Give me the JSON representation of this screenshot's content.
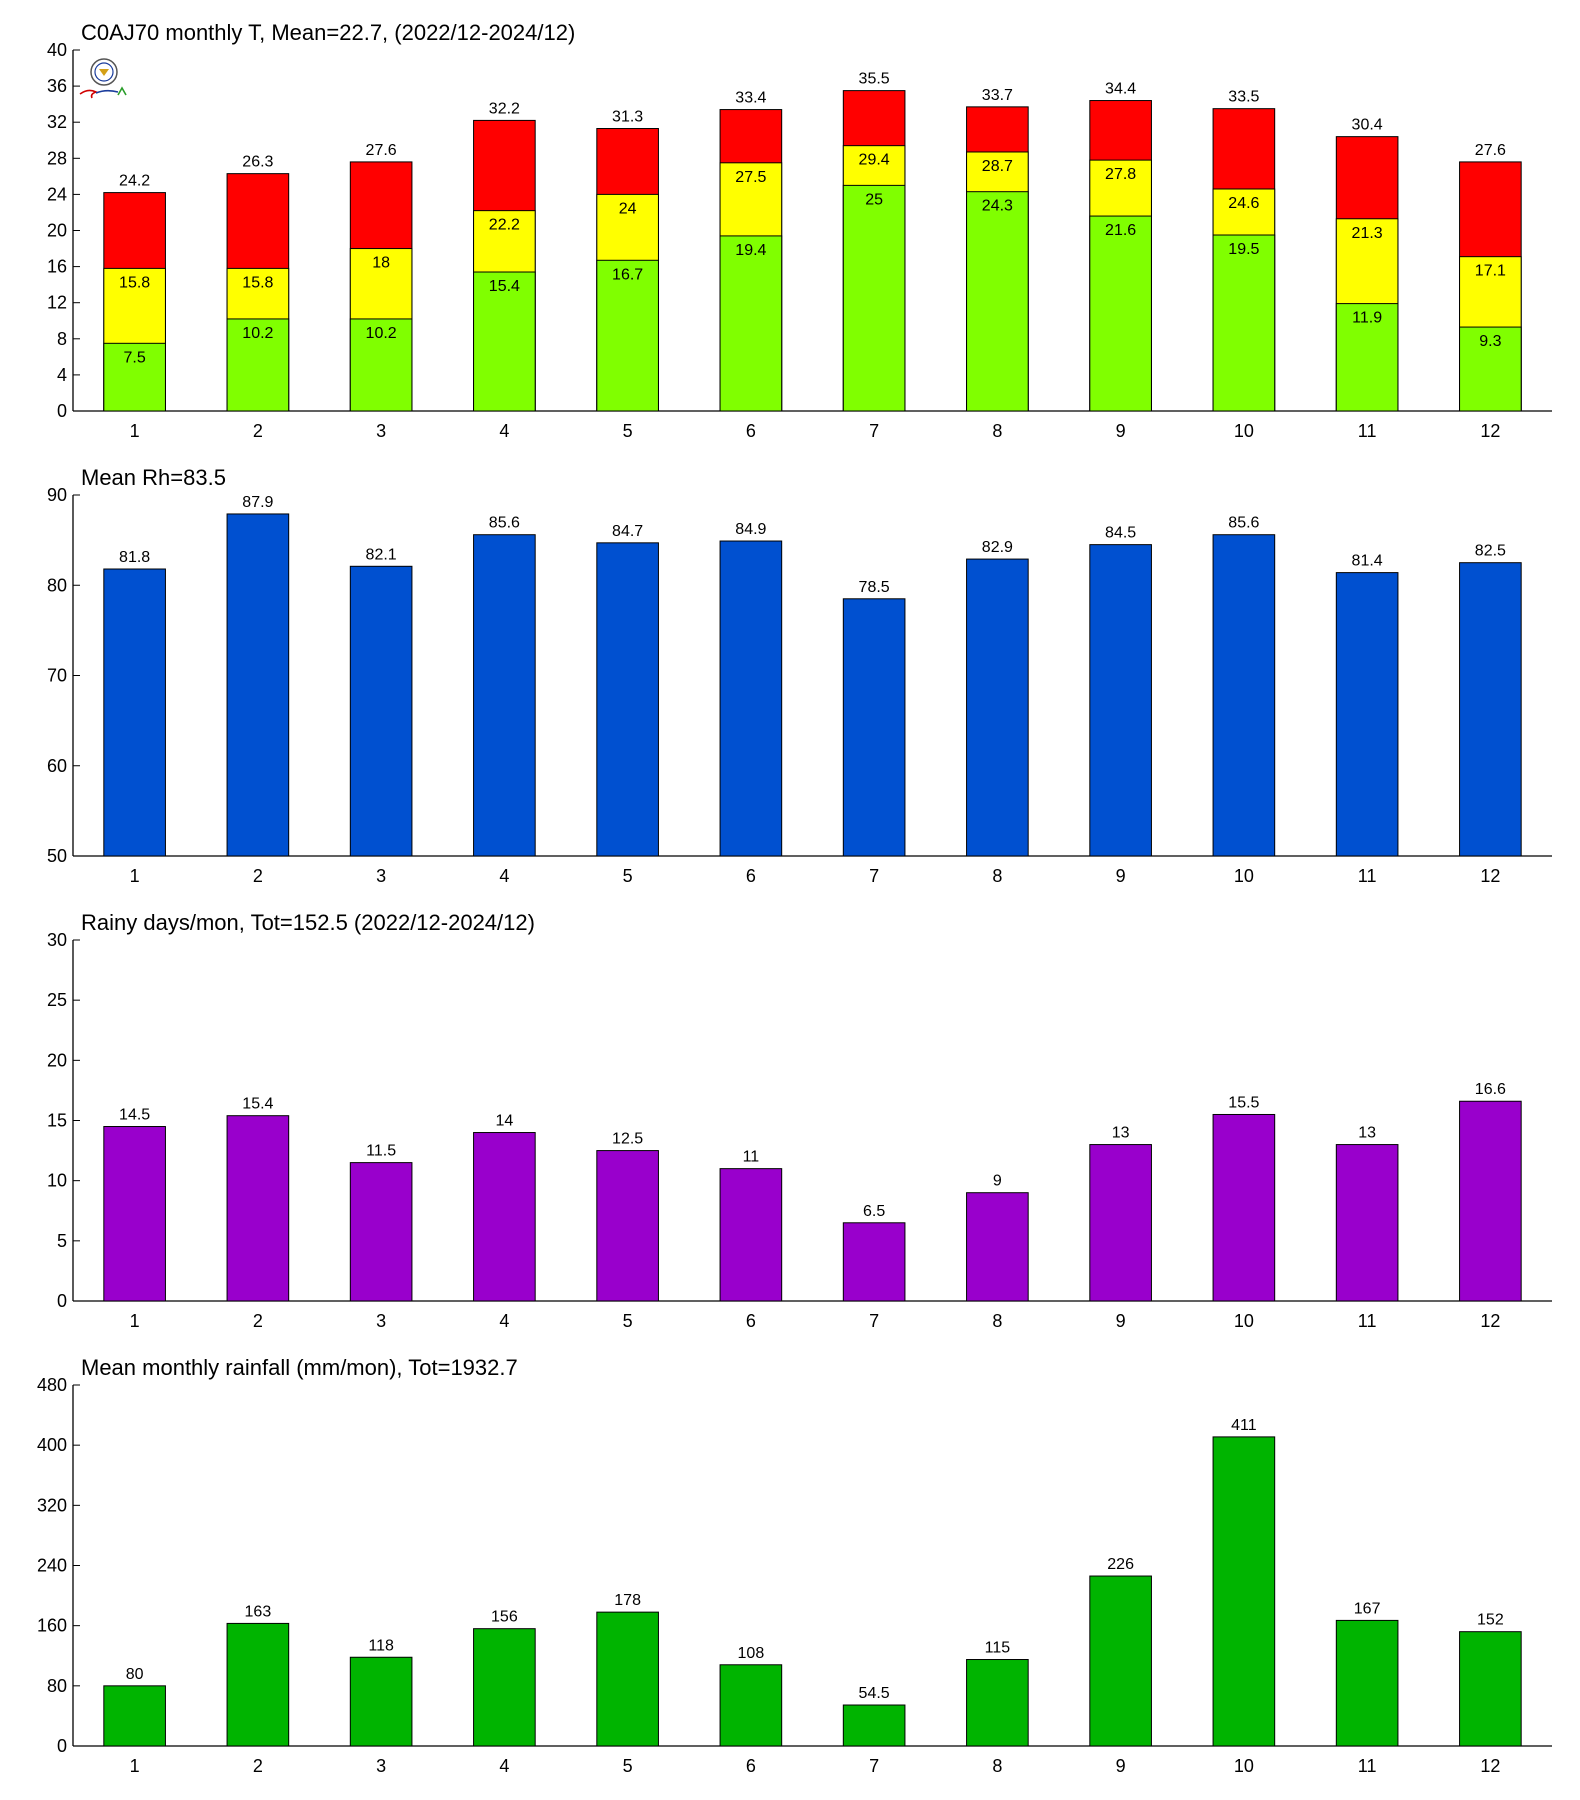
{
  "colors": {
    "max_temp": "#ff0000",
    "mean_temp": "#ffff00",
    "min_temp": "#80ff00",
    "humidity": "#0050d0",
    "rainy_days": "#9900cc",
    "rainfall": "#00b400",
    "axis": "#000000"
  },
  "logo_icon": "weather-lab-logo-icon",
  "chart_data": [
    {
      "type": "bar",
      "subtype": "overlapping-stacked",
      "title": "C0AJ70 monthly T, Mean=22.7, (2022/12-2024/12)",
      "categories": [
        "1",
        "2",
        "3",
        "4",
        "5",
        "6",
        "7",
        "8",
        "9",
        "10",
        "11",
        "12"
      ],
      "ylim": [
        0,
        40
      ],
      "yticks": [
        "0",
        "4",
        "8",
        "12",
        "16",
        "20",
        "24",
        "28",
        "32",
        "36",
        "40"
      ],
      "series": [
        {
          "values": [
            24.2,
            26.3,
            27.6,
            32.2,
            31.3,
            33.4,
            35.5,
            33.7,
            34.4,
            33.5,
            30.4,
            27.6
          ],
          "labels": [
            "24.2",
            "26.3",
            "27.6",
            "32.2",
            "31.3",
            "33.4",
            "35.5",
            "33.7",
            "34.4",
            "33.5",
            "30.4",
            "27.6"
          ]
        },
        {
          "values": [
            15.8,
            15.8,
            18,
            22.2,
            24,
            27.5,
            29.4,
            28.7,
            27.8,
            24.6,
            21.3,
            17.1
          ],
          "labels": [
            "15.8",
            "15.8",
            "18",
            "22.2",
            "24",
            "27.5",
            "29.4",
            "28.7",
            "27.8",
            "24.6",
            "21.3",
            "17.1"
          ]
        },
        {
          "values": [
            7.5,
            10.2,
            10.2,
            15.4,
            16.7,
            19.4,
            25,
            24.3,
            21.6,
            19.5,
            11.9,
            9.3
          ],
          "labels": [
            "7.5",
            "10.2",
            "10.2",
            "15.4",
            "16.7",
            "19.4",
            "25",
            "24.3",
            "21.6",
            "19.5",
            "11.9",
            "9.3"
          ]
        }
      ],
      "grid": false
    },
    {
      "type": "bar",
      "title": "Mean Rh=83.5",
      "categories": [
        "1",
        "2",
        "3",
        "4",
        "5",
        "6",
        "7",
        "8",
        "9",
        "10",
        "11",
        "12"
      ],
      "ylim": [
        50,
        90
      ],
      "yticks": [
        "50",
        "60",
        "70",
        "80",
        "90"
      ],
      "values": [
        81.8,
        87.9,
        82.1,
        85.6,
        84.7,
        84.9,
        78.5,
        82.9,
        84.5,
        85.6,
        81.4,
        82.5
      ],
      "labels": [
        "81.8",
        "87.9",
        "82.1",
        "85.6",
        "84.7",
        "84.9",
        "78.5",
        "82.9",
        "84.5",
        "85.6",
        "81.4",
        "82.5"
      ],
      "grid": false
    },
    {
      "type": "bar",
      "title": "Rainy days/mon, Tot=152.5 (2022/12-2024/12)",
      "categories": [
        "1",
        "2",
        "3",
        "4",
        "5",
        "6",
        "7",
        "8",
        "9",
        "10",
        "11",
        "12"
      ],
      "ylim": [
        0,
        30
      ],
      "yticks": [
        "0",
        "5",
        "10",
        "15",
        "20",
        "25",
        "30"
      ],
      "values": [
        14.5,
        15.4,
        11.5,
        14,
        12.5,
        11,
        6.5,
        9,
        13,
        15.5,
        13,
        16.6
      ],
      "labels": [
        "14.5",
        "15.4",
        "11.5",
        "14",
        "12.5",
        "11",
        "6.5",
        "9",
        "13",
        "15.5",
        "13",
        "16.6"
      ],
      "grid": false
    },
    {
      "type": "bar",
      "title": "Mean monthly rainfall (mm/mon), Tot=1932.7",
      "categories": [
        "1",
        "2",
        "3",
        "4",
        "5",
        "6",
        "7",
        "8",
        "9",
        "10",
        "11",
        "12"
      ],
      "ylim": [
        0,
        480
      ],
      "yticks": [
        "0",
        "80",
        "160",
        "240",
        "320",
        "400",
        "480"
      ],
      "values": [
        80,
        163,
        118,
        156,
        178,
        108,
        54.5,
        115,
        226,
        411,
        167,
        152
      ],
      "labels": [
        "80",
        "163",
        "118",
        "156",
        "178",
        "108",
        "54.5",
        "115",
        "226",
        "411",
        "167",
        "152"
      ],
      "grid": false
    }
  ]
}
